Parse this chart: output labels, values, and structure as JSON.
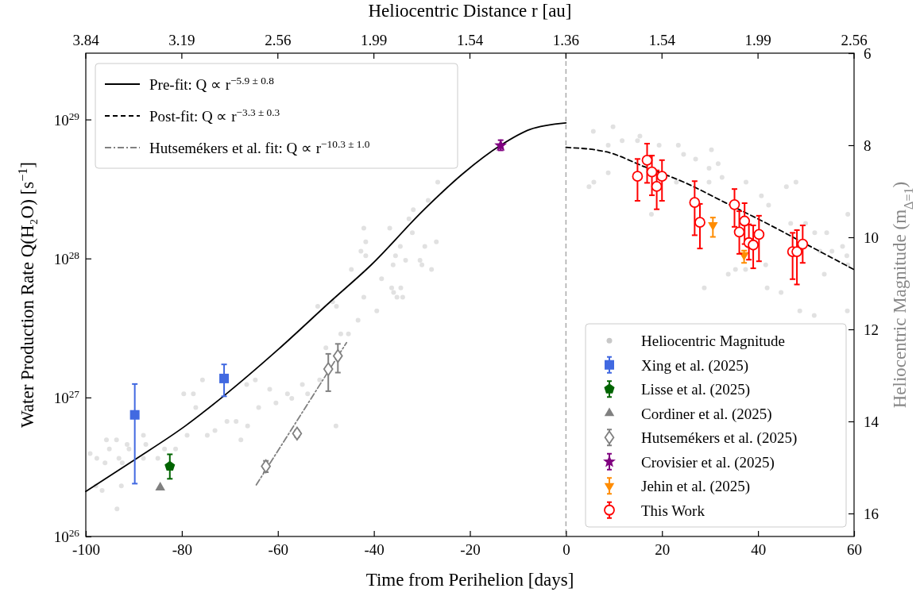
{
  "chart_data": {
    "type": "scatter",
    "xlabel": "Time from Perihelion [days]",
    "ylabel": "Water Production Rate Q(H₂O) [s$^{−1}$]",
    "y2label": "Heliocentric Magnitude (m$_{Δ=1}$)",
    "x2label": "Heliocentric Distance r [au]",
    "xlim": [
      -100,
      60
    ],
    "xticks": [
      -100,
      -80,
      -60,
      -40,
      -20,
      0,
      20,
      40,
      60
    ],
    "annotations": [
      "3.84",
      "3.19",
      "2.56",
      "1.99",
      "1.54",
      "1.36",
      "1.54",
      "1.99",
      "2.56"
    ],
    "log": "y",
    "ylim": [
      1e+26,
      3e+29
    ],
    "yticks": [
      {
        "value": 1e+26,
        "label": "10$^{26}$"
      },
      {
        "value": 1e+27,
        "label": "10$^{27}$"
      },
      {
        "value": 1e+28,
        "label": "10$^{28}$"
      },
      {
        "value": 1e+29,
        "label": "10$^{29}$"
      }
    ],
    "y2lim": [
      16.5,
      6
    ],
    "y2ticks": [
      6,
      8,
      10,
      12,
      14,
      16
    ],
    "legend": [
      "top left",
      "bottom right"
    ],
    "ref_lines": [
      {
        "axis": "x",
        "value": 0,
        "color": "#aaaaaa",
        "line_style": "dashed"
      }
    ],
    "series": [
      {
        "name": "Heliocentric Magnitude",
        "axis": "y2",
        "color": "#c8c8c8",
        "marker": "circle",
        "x": [
          -99.1,
          -97.7,
          -96.0,
          -95.7,
          -95.1,
          -93.6,
          -93.1,
          -92.4,
          -91.4,
          -91.0,
          -88.0,
          -87.5,
          -88.0,
          -85.0,
          -83.6,
          -81.3,
          -79.6,
          -78.9,
          -77.6,
          -77.1,
          -75.7,
          -74.7,
          -73.1,
          -70.6,
          -68.7,
          -67.7,
          -66.5,
          -66.3,
          -64.7,
          -64.0,
          -61.7,
          -60.4,
          -58.0,
          -57.1,
          -54.9,
          -53.8,
          -51.3,
          -50.0,
          -47.9,
          -46.9,
          -45.3,
          -43.3,
          -51.7,
          -48.6,
          -93.5,
          -96.6,
          -92.6,
          -97.9,
          -26.7,
          -28.7,
          -31.8,
          -32.7,
          -32.0,
          -36.7,
          -42.1,
          -41.7,
          -42.7,
          -41.7,
          -34.5,
          -35.5,
          -36.0,
          -33.4,
          -30.4,
          -29.4,
          -27.0,
          -28.0,
          -30.0,
          -44.7,
          -38.4,
          -36.3,
          -34.4,
          -35.9,
          -35.2,
          -34.0,
          -42.1,
          -39.4,
          -47.8,
          5.7,
          9.8,
          8.8,
          11.7,
          15.4,
          14.9,
          19.4,
          23.4,
          24.5,
          27.0,
          30.3,
          29.8,
          31.7,
          32.5,
          29.8,
          23.0,
          5.8,
          4.8,
          8.8,
          17.8,
          37.5,
          40.7,
          42.2,
          33.8,
          41.9,
          28.8,
          44.8,
          45.9,
          47.9,
          46.8,
          49.9,
          51.8,
          54.3,
          52.9,
          55.4,
          57.6,
          58.5,
          58.7,
          53.8,
          58.7,
          48.7,
          51.7,
          58.6,
          41.6,
          37.4,
          35.3
        ],
        "values": [
          14.7,
          14.8,
          14.9,
          14.4,
          14.6,
          14.4,
          14.8,
          14.9,
          14.5,
          14.6,
          14.3,
          14.5,
          14.8,
          14.8,
          14.6,
          14.6,
          13.4,
          14.3,
          13.4,
          13.7,
          13.1,
          14.3,
          14.2,
          14.0,
          14.0,
          14.4,
          13.2,
          14.1,
          13.1,
          13.7,
          13.3,
          13.6,
          13.4,
          13.5,
          13.2,
          13.4,
          13.1,
          12.4,
          14.1,
          12.1,
          12.1,
          11.8,
          11.5,
          11.4,
          15.9,
          15.5,
          15.4,
          15.4,
          8.8,
          9.2,
          9.4,
          9.6,
          9.9,
          9.8,
          9.8,
          10.1,
          10.3,
          10.4,
          10.2,
          10.4,
          10.6,
          10.5,
          10.5,
          10.2,
          10.1,
          10.7,
          10.6,
          10.7,
          10.9,
          11.1,
          11.1,
          11.2,
          11.3,
          11.3,
          11.3,
          11.6,
          11.5,
          7.7,
          7.6,
          8.0,
          7.9,
          7.8,
          7.9,
          8.0,
          8.0,
          8.2,
          8.3,
          8.1,
          8.5,
          8.4,
          8.7,
          8.8,
          8.8,
          8.8,
          8.9,
          8.6,
          9.5,
          8.8,
          9.1,
          9.3,
          10.8,
          11.1,
          11.1,
          11.2,
          8.9,
          8.8,
          9.7,
          9.7,
          9.9,
          9.9,
          10.3,
          10.3,
          10.2,
          10.4,
          10.6,
          10.8,
          9.5,
          11.6,
          11.7,
          11.6,
          10.6,
          10.7,
          10.7
        ]
      },
      {
        "name": "Pre-fit: Q ∝ r$^{−5.9 ± 0.8}$",
        "type": "line",
        "color": "#000000",
        "line_style": "solid",
        "x": [
          -100,
          -89.8,
          -79.2,
          -71.2,
          -59.9,
          -49.1,
          -40.6,
          -29.6,
          -21.3,
          -13.6,
          -7.5,
          0
        ],
        "values": [
          2.11e+26,
          3.57e+26,
          6.27e+26,
          1.03e+27,
          2.22e+27,
          4.88e+27,
          8.97e+27,
          2.24e+28,
          4.12e+28,
          6.52e+28,
          8.47e+28,
          9.44e+28
        ]
      },
      {
        "name": "Post-fit: Q ∝ r$^{−3.3 ± 0.3}$",
        "type": "line",
        "color": "#000000",
        "line_style": "dashed",
        "x": [
          0,
          8.3,
          16.5,
          24.8,
          33.1,
          41.4,
          49.6,
          60
        ],
        "values": [
          6.3e+28,
          5.86e+28,
          4.55e+28,
          3.51e+28,
          2.53e+28,
          1.82e+28,
          1.29e+28,
          8.32e+27
        ]
      },
      {
        "name": "Hutsemékers et al. fit: Q ∝ r$^{−10.3 ± 1.0}$",
        "type": "line",
        "color": "#808080",
        "line_style": "dashdot",
        "x": [
          -64.5,
          -45.7
        ],
        "values": [
          2.35e+26,
          2.48e+27
        ]
      },
      {
        "name": "Xing et al. (2025)",
        "color": "#4169e1",
        "marker": "square",
        "x": [
          -89.8,
          -71.2
        ],
        "values": [
          7.5e+26,
          1.37e+27
        ],
        "errors": [
          [
            2.4e+26,
            1.25e+27
          ],
          [
            1.02e+27,
            1.73e+27
          ]
        ]
      },
      {
        "name": "Lisse et al. (2025)",
        "color": "#006400",
        "x": [
          -82.5
        ],
        "values": [
          3.2e+26
        ],
        "errors": [
          [
            2.6e+26,
            3.9e+26
          ]
        ]
      },
      {
        "name": "Cordiner et al. (2025)",
        "color": "#808080",
        "marker": "triangle",
        "x": [
          -84.5
        ],
        "values": [
          2.25e+26
        ]
      },
      {
        "name": "Hutsemékers et al. (2025)",
        "color": "#808080",
        "marker": "diamond-open",
        "x": [
          -62.5,
          -56.0,
          -49.5,
          -47.5
        ],
        "values": [
          3.2e+26,
          5.5e+26,
          1.6e+27,
          1.99e+27
        ],
        "errors": [
          [
            2.9e+26,
            3.5e+26
          ],
          [
            5.2e+26,
            5.8e+26
          ],
          [
            1.11e+27,
            2.06e+27
          ],
          [
            1.51e+27,
            2.43e+27
          ]
        ]
      },
      {
        "name": "Crovisier et al. (2025)",
        "color": "#800080",
        "marker": "star",
        "x": [
          -13.6
        ],
        "values": [
          6.5e+28
        ],
        "errors": [
          [
            6e+28,
            7.1e+28
          ]
        ]
      },
      {
        "name": "Jehin et al. (2025)",
        "color": "#ff8c00",
        "marker": "triangle-down",
        "x": [
          30.6,
          37.1
        ],
        "values": [
          1.74e+28,
          1.06e+28
        ],
        "errors": [
          [
            1.43e+28,
            1.97e+28
          ],
          [
            9.3e+27,
            1.14e+28
          ]
        ]
      },
      {
        "name": "This Work",
        "color": "#ff0000",
        "marker": "circle-open",
        "x": [
          14.9,
          16.9,
          17.9,
          18.9,
          20.0,
          26.8,
          27.9,
          35.1,
          37.2,
          36.1,
          38.1,
          39.0,
          40.2,
          47.2,
          48.1,
          49.3
        ],
        "values": [
          3.9e+28,
          5.1e+28,
          4.2e+28,
          3.3e+28,
          3.9e+28,
          2.53e+28,
          1.82e+28,
          2.44e+28,
          1.86e+28,
          1.55e+28,
          1.3e+28,
          1.25e+28,
          1.49e+28,
          1.12e+28,
          1.12e+28,
          1.27e+28
        ],
        "errors": [
          [
            2.6e+28,
            5.2e+28
          ],
          [
            3.5e+28,
            6.7e+28
          ],
          [
            2.85e+28,
            5.5e+28
          ],
          [
            2.26e+28,
            4.3e+28
          ],
          [
            2.6e+28,
            5.1e+28
          ],
          [
            1.47e+28,
            3.6e+28
          ],
          [
            1.18e+28,
            2.47e+28
          ],
          [
            1.69e+28,
            3.16e+28
          ],
          [
            1.27e+28,
            2.5e+28
          ],
          [
            1.08e+28,
            2.19e+28
          ],
          [
            9.8e+27,
            1.76e+28
          ],
          [
            8.5e+27,
            1.73e+28
          ],
          [
            9.55e+27,
            2.03e+28
          ],
          [
            7.1e+27,
            1.53e+28
          ],
          [
            6.5e+27,
            1.6e+28
          ],
          [
            9.3e+27,
            1.73e+28
          ]
        ]
      }
    ]
  }
}
